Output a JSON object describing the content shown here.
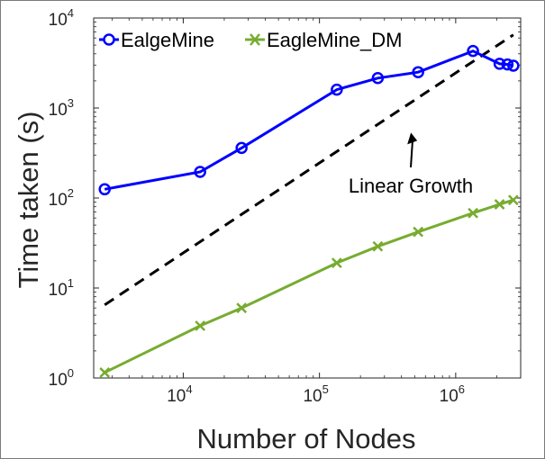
{
  "chart_data": {
    "type": "line",
    "xscale": "log",
    "yscale": "log",
    "xlim": [
      2200,
      3000000
    ],
    "ylim": [
      1,
      10000
    ],
    "xlabel": "Number of Nodes",
    "ylabel": "Time taken (s)",
    "x_ticks": [
      {
        "value": 10000,
        "base": "10",
        "exp": "4"
      },
      {
        "value": 100000,
        "base": "10",
        "exp": "5"
      },
      {
        "value": 1000000,
        "base": "10",
        "exp": "6"
      }
    ],
    "y_ticks": [
      {
        "value": 1,
        "base": "10",
        "exp": "0"
      },
      {
        "value": 10,
        "base": "10",
        "exp": "1"
      },
      {
        "value": 100,
        "base": "10",
        "exp": "2"
      },
      {
        "value": 1000,
        "base": "10",
        "exp": "3"
      },
      {
        "value": 10000,
        "base": "10",
        "exp": "4"
      }
    ],
    "grid": false,
    "legend_position": "top-left",
    "series": [
      {
        "name": "EalgeMine",
        "color": "#0000ff",
        "marker": "circle",
        "x": [
          2650,
          13300,
          26800,
          134000,
          268000,
          530000,
          1340000,
          2100000,
          2400000,
          2650000
        ],
        "y": [
          125,
          195,
          360,
          1600,
          2150,
          2500,
          4300,
          3100,
          3050,
          2950
        ]
      },
      {
        "name": "EagleMine_DM",
        "color": "#77ac30",
        "marker": "x",
        "x": [
          2650,
          13300,
          26800,
          134000,
          268000,
          530000,
          1340000,
          2100000,
          2650000
        ],
        "y": [
          1.15,
          3.8,
          6,
          19,
          29,
          42,
          68,
          85,
          95
        ]
      }
    ],
    "reference_line": {
      "style": "dashed",
      "color": "#000000",
      "x": [
        2650,
        2650000
      ],
      "y": [
        6.5,
        6500
      ]
    },
    "annotations": [
      {
        "text": "Linear Growth",
        "arrow_to_x": 530000,
        "arrow_to_y": 640
      }
    ]
  }
}
